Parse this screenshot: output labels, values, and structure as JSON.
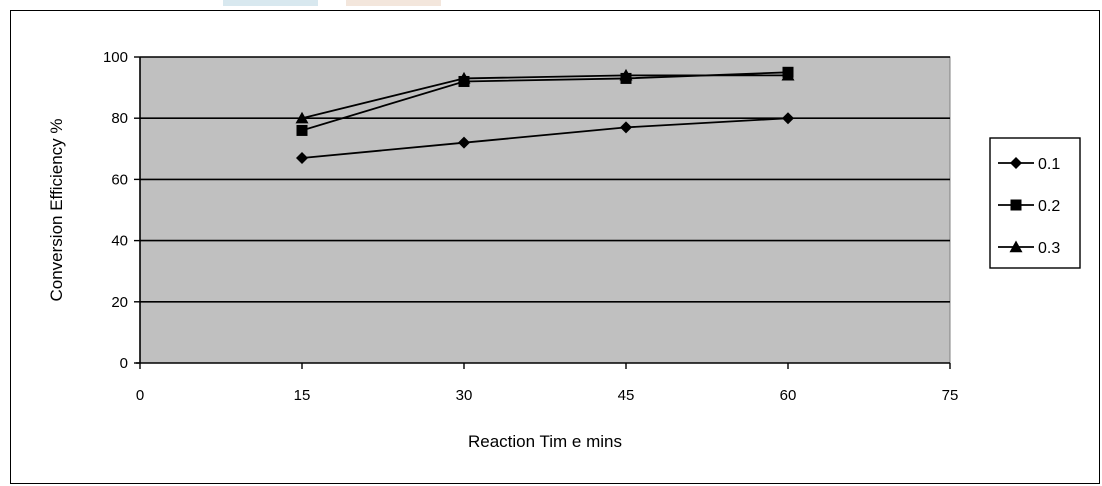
{
  "chart_data": {
    "type": "line",
    "title": "",
    "xlabel": "Reaction Tim e mins",
    "ylabel": "Conversion Efficiency %",
    "xlim": [
      0,
      75
    ],
    "ylim": [
      0,
      100
    ],
    "x_ticks": [
      "0",
      "15",
      "30",
      "45",
      "60",
      "75"
    ],
    "y_ticks": [
      "0",
      "20",
      "40",
      "60",
      "80",
      "100"
    ],
    "grid": "horizontal",
    "legend_position": "right",
    "plot_background": "#c0c0c0",
    "series": [
      {
        "name": "0.1",
        "marker": "diamond",
        "x": [
          15,
          30,
          45,
          60
        ],
        "y": [
          67,
          72,
          77,
          80
        ]
      },
      {
        "name": "0.2",
        "marker": "square",
        "x": [
          15,
          30,
          45,
          60
        ],
        "y": [
          76,
          92,
          93,
          95
        ]
      },
      {
        "name": "0.3",
        "marker": "triangle",
        "x": [
          15,
          30,
          45,
          60
        ],
        "y": [
          80,
          93,
          94,
          94
        ]
      }
    ]
  }
}
